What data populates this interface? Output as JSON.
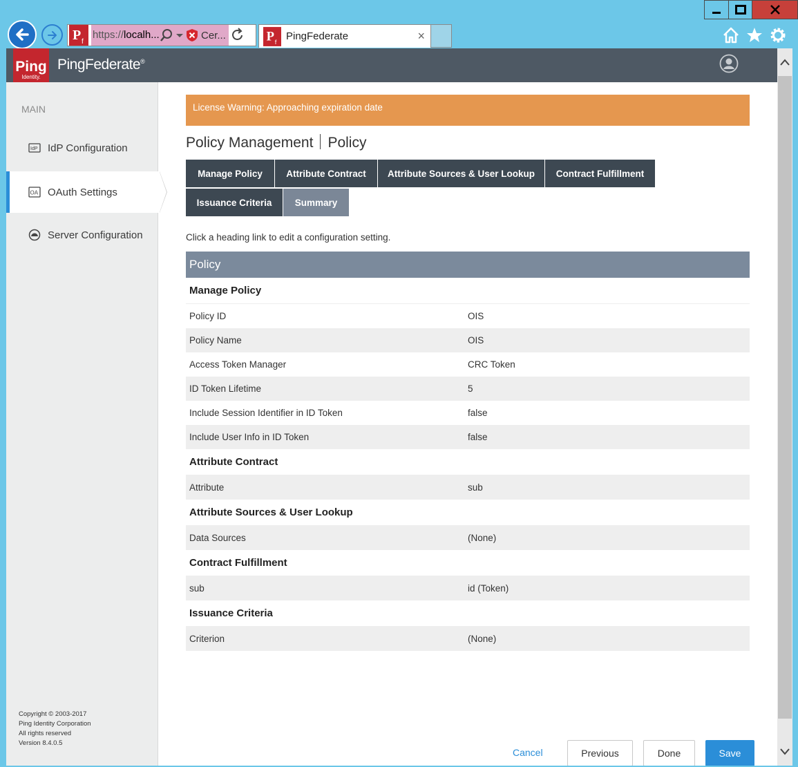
{
  "browser": {
    "url_scheme": "https://",
    "url_host": "localh...",
    "cert_label": "Cer...",
    "tab_title": "PingFederate",
    "tab_close": "×"
  },
  "app": {
    "logo_main": "Ping",
    "logo_sub": "Identity.",
    "product_name": "PingFederate",
    "product_mark": "®"
  },
  "sidebar": {
    "heading": "MAIN",
    "items": [
      {
        "label": "IdP Configuration",
        "icon": "idp-icon",
        "icon_text": "IdP"
      },
      {
        "label": "OAuth Settings",
        "icon": "oauth-icon",
        "icon_text": "OA"
      },
      {
        "label": "Server Configuration",
        "icon": "server-icon"
      }
    ],
    "copyright": [
      "Copyright © 2003-2017",
      "Ping Identity Corporation",
      "All rights reserved",
      "Version 8.4.0.5"
    ]
  },
  "main": {
    "license_warning": "License Warning: Approaching expiration date",
    "title_part1": "Policy Management",
    "title_part2": "Policy",
    "tabs": [
      {
        "label": "Manage Policy"
      },
      {
        "label": "Attribute Contract"
      },
      {
        "label": "Attribute Sources & User Lookup"
      },
      {
        "label": "Contract Fulfillment"
      },
      {
        "label": "Issuance Criteria"
      },
      {
        "label": "Summary"
      }
    ],
    "hint": "Click a heading link to edit a configuration setting.",
    "section_title": "Policy",
    "groups": [
      {
        "title": "Manage Policy",
        "rows": [
          {
            "key": "Policy ID",
            "value": "OIS"
          },
          {
            "key": "Policy Name",
            "value": "OIS"
          },
          {
            "key": "Access Token Manager",
            "value": "CRC Token"
          },
          {
            "key": "ID Token Lifetime",
            "value": "5"
          },
          {
            "key": "Include Session Identifier in ID Token",
            "value": "false"
          },
          {
            "key": "Include User Info in ID Token",
            "value": "false"
          }
        ]
      },
      {
        "title": "Attribute Contract",
        "rows": [
          {
            "key": "Attribute",
            "value": "sub"
          }
        ]
      },
      {
        "title": "Attribute Sources & User Lookup",
        "rows": [
          {
            "key": "Data Sources",
            "value": "(None)"
          }
        ]
      },
      {
        "title": "Contract Fulfillment",
        "rows": [
          {
            "key": "sub",
            "value": "id (Token)"
          }
        ]
      },
      {
        "title": "Issuance Criteria",
        "rows": [
          {
            "key": "Criterion",
            "value": "(None)"
          }
        ]
      }
    ]
  },
  "footer": {
    "cancel": "Cancel",
    "previous": "Previous",
    "done": "Done",
    "save": "Save"
  },
  "colors": {
    "header_bg": "#4e5964",
    "brand_red": "#c4262e",
    "warning_bg": "#e5974f",
    "tab_bg": "#3d4852",
    "tab_active_bg": "#7b8797",
    "section_bg": "#7b8a9c",
    "accent_blue": "#2b8ed8"
  }
}
